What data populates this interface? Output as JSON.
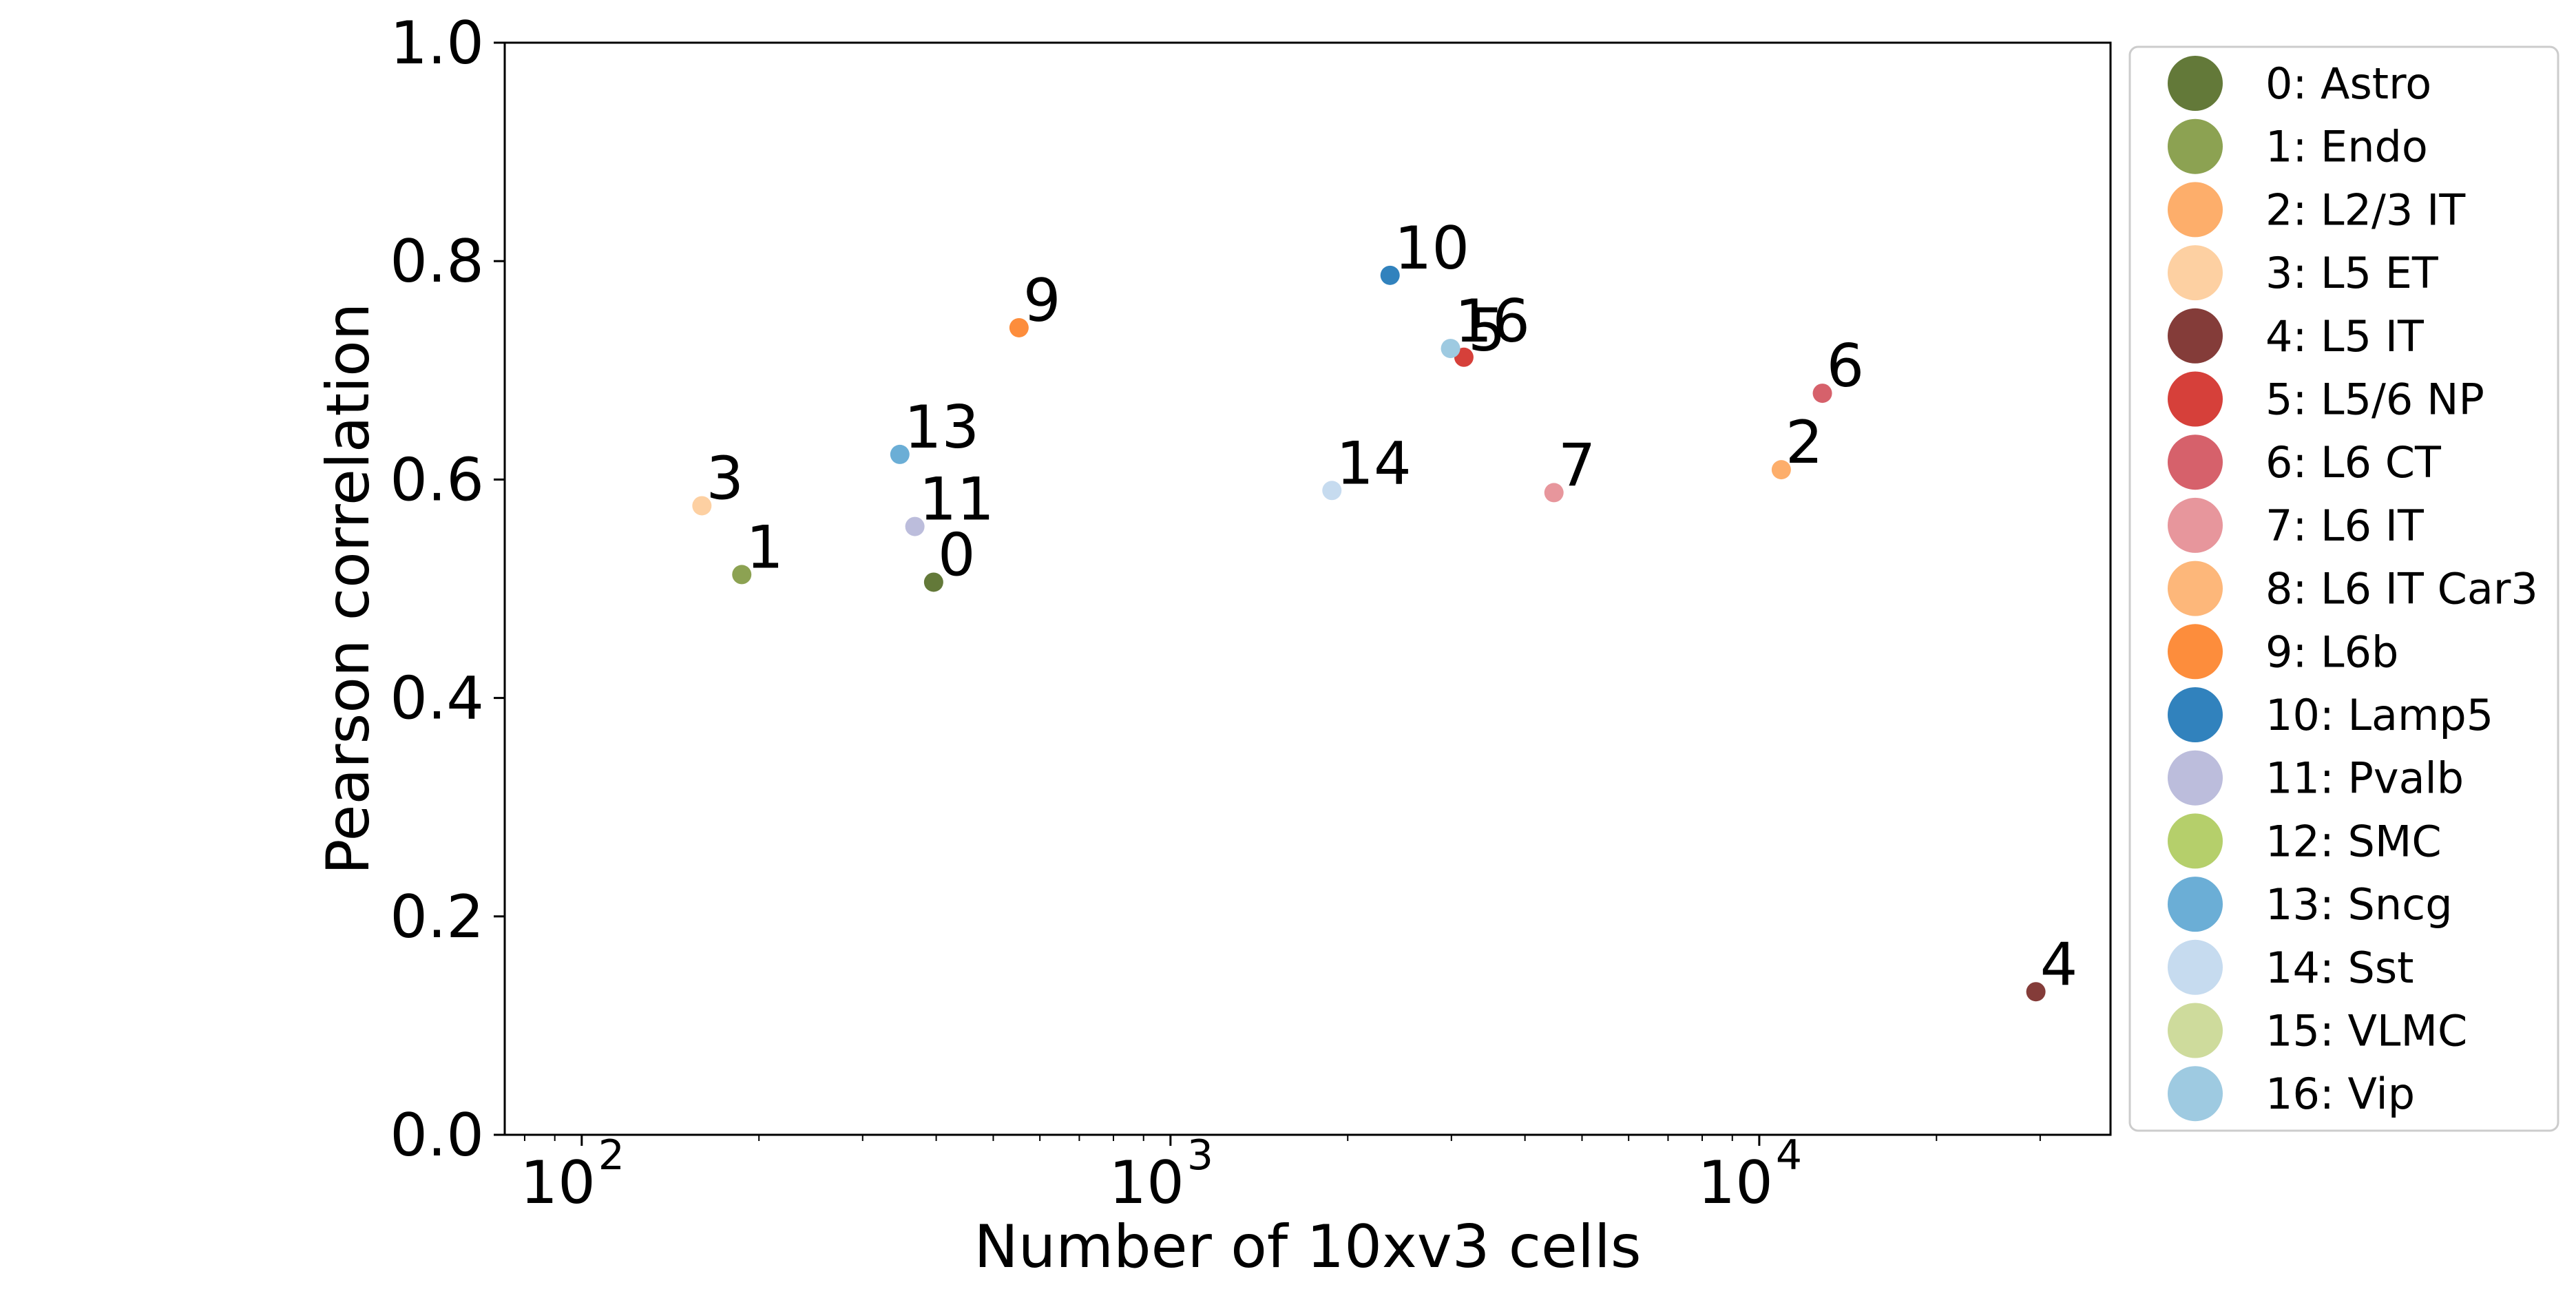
{
  "chart_data": {
    "type": "scatter",
    "title": "",
    "xlabel": "Number of 10xv3 cells",
    "ylabel": "Pearson correlation",
    "xscale": "log",
    "xlim": [
      74,
      39500
    ],
    "ylim": [
      0.0,
      1.0
    ],
    "x_ticks": [
      {
        "value": 100,
        "base": "10",
        "exp": "2"
      },
      {
        "value": 1000,
        "base": "10",
        "exp": "3"
      },
      {
        "value": 10000,
        "base": "10",
        "exp": "4"
      }
    ],
    "y_ticks": [
      {
        "value": 0.0,
        "label": "0.0"
      },
      {
        "value": 0.2,
        "label": "0.2"
      },
      {
        "value": 0.4,
        "label": "0.4"
      },
      {
        "value": 0.6,
        "label": "0.6"
      },
      {
        "value": 0.8,
        "label": "0.8"
      },
      {
        "value": 1.0,
        "label": "1.0"
      }
    ],
    "grid": false,
    "legend_position": "outside-right",
    "points": [
      {
        "id": "0",
        "name": "0: Astro",
        "x": 396,
        "y": 0.506,
        "color": "#637939"
      },
      {
        "id": "1",
        "name": "1: Endo",
        "x": 187,
        "y": 0.513,
        "color": "#8ca252"
      },
      {
        "id": "2",
        "name": "2: L2/3 IT",
        "x": 10900,
        "y": 0.609,
        "color": "#fdae6b"
      },
      {
        "id": "3",
        "name": "3: L5 ET",
        "x": 160,
        "y": 0.576,
        "color": "#fdd0a2"
      },
      {
        "id": "4",
        "name": "4: L5 IT",
        "x": 29500,
        "y": 0.131,
        "color": "#843c39"
      },
      {
        "id": "5",
        "name": "5: L5/6 NP",
        "x": 3150,
        "y": 0.712,
        "color": "#d6403a"
      },
      {
        "id": "6",
        "name": "6: L6 CT",
        "x": 12800,
        "y": 0.679,
        "color": "#d6616b"
      },
      {
        "id": "7",
        "name": "7: L6 IT",
        "x": 4480,
        "y": 0.588,
        "color": "#e7969c"
      },
      {
        "id": "8",
        "name": "8: L6 IT Car3",
        "x": null,
        "y": null,
        "color": "#fdb77a"
      },
      {
        "id": "9",
        "name": "9: L6b",
        "x": 553,
        "y": 0.739,
        "color": "#fd8d3c"
      },
      {
        "id": "10",
        "name": "10: Lamp5",
        "x": 2360,
        "y": 0.787,
        "color": "#3182bd"
      },
      {
        "id": "11",
        "name": "11: Pvalb",
        "x": 368,
        "y": 0.557,
        "color": "#bcbddc"
      },
      {
        "id": "12",
        "name": "12: SMC",
        "x": null,
        "y": null,
        "color": "#b5cf6b"
      },
      {
        "id": "13",
        "name": "13: Sncg",
        "x": 347,
        "y": 0.623,
        "color": "#6baed6"
      },
      {
        "id": "14",
        "name": "14: Sst",
        "x": 1880,
        "y": 0.59,
        "color": "#c6dbef"
      },
      {
        "id": "15",
        "name": "15: VLMC",
        "x": null,
        "y": null,
        "color": "#cedb9c"
      },
      {
        "id": "16",
        "name": "16: Vip",
        "x": 2990,
        "y": 0.72,
        "color": "#9ecae1"
      }
    ]
  }
}
